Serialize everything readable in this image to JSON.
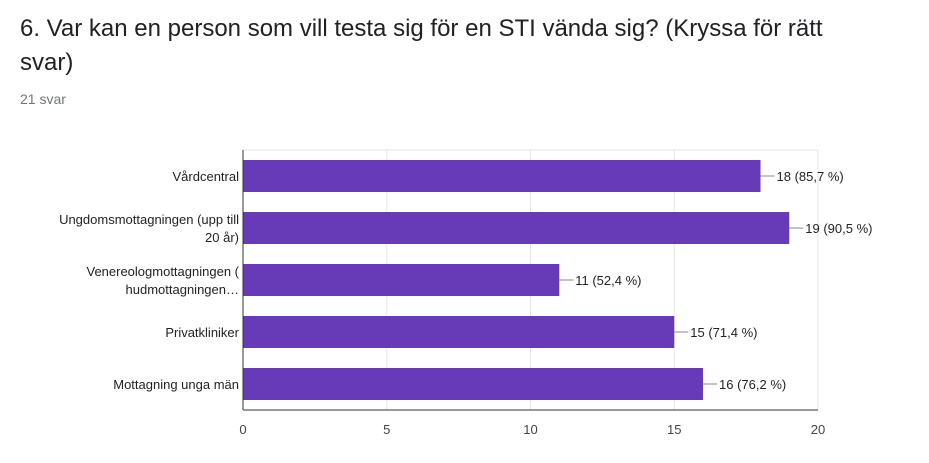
{
  "question": {
    "title": "6. Var kan en person som vill testa sig för en STI vända sig? (Kryssa för rätt svar)",
    "response_count": "21 svar"
  },
  "colors": {
    "bar": "#673ab7",
    "grid": "#e6e6e6",
    "axis": "#333333"
  },
  "chart_data": {
    "type": "bar",
    "orientation": "horizontal",
    "categories": [
      [
        "Vårdcentral"
      ],
      [
        "Ungdomsmottagningen (upp till",
        "20 år)"
      ],
      [
        "Venereologmottagningen (",
        "hudmottagningen…"
      ],
      [
        "Privatkliniker"
      ],
      [
        "Mottagning unga män"
      ]
    ],
    "values": [
      18,
      19,
      11,
      15,
      16
    ],
    "data_labels": [
      "18 (85,7 %)",
      "19 (90,5 %)",
      "11 (52,4 %)",
      "15 (71,4 %)",
      "16 (76,2 %)"
    ],
    "xlim": [
      0,
      20
    ],
    "xticks": [
      0,
      5,
      10,
      15,
      20
    ],
    "grid": true,
    "legend": "none"
  }
}
